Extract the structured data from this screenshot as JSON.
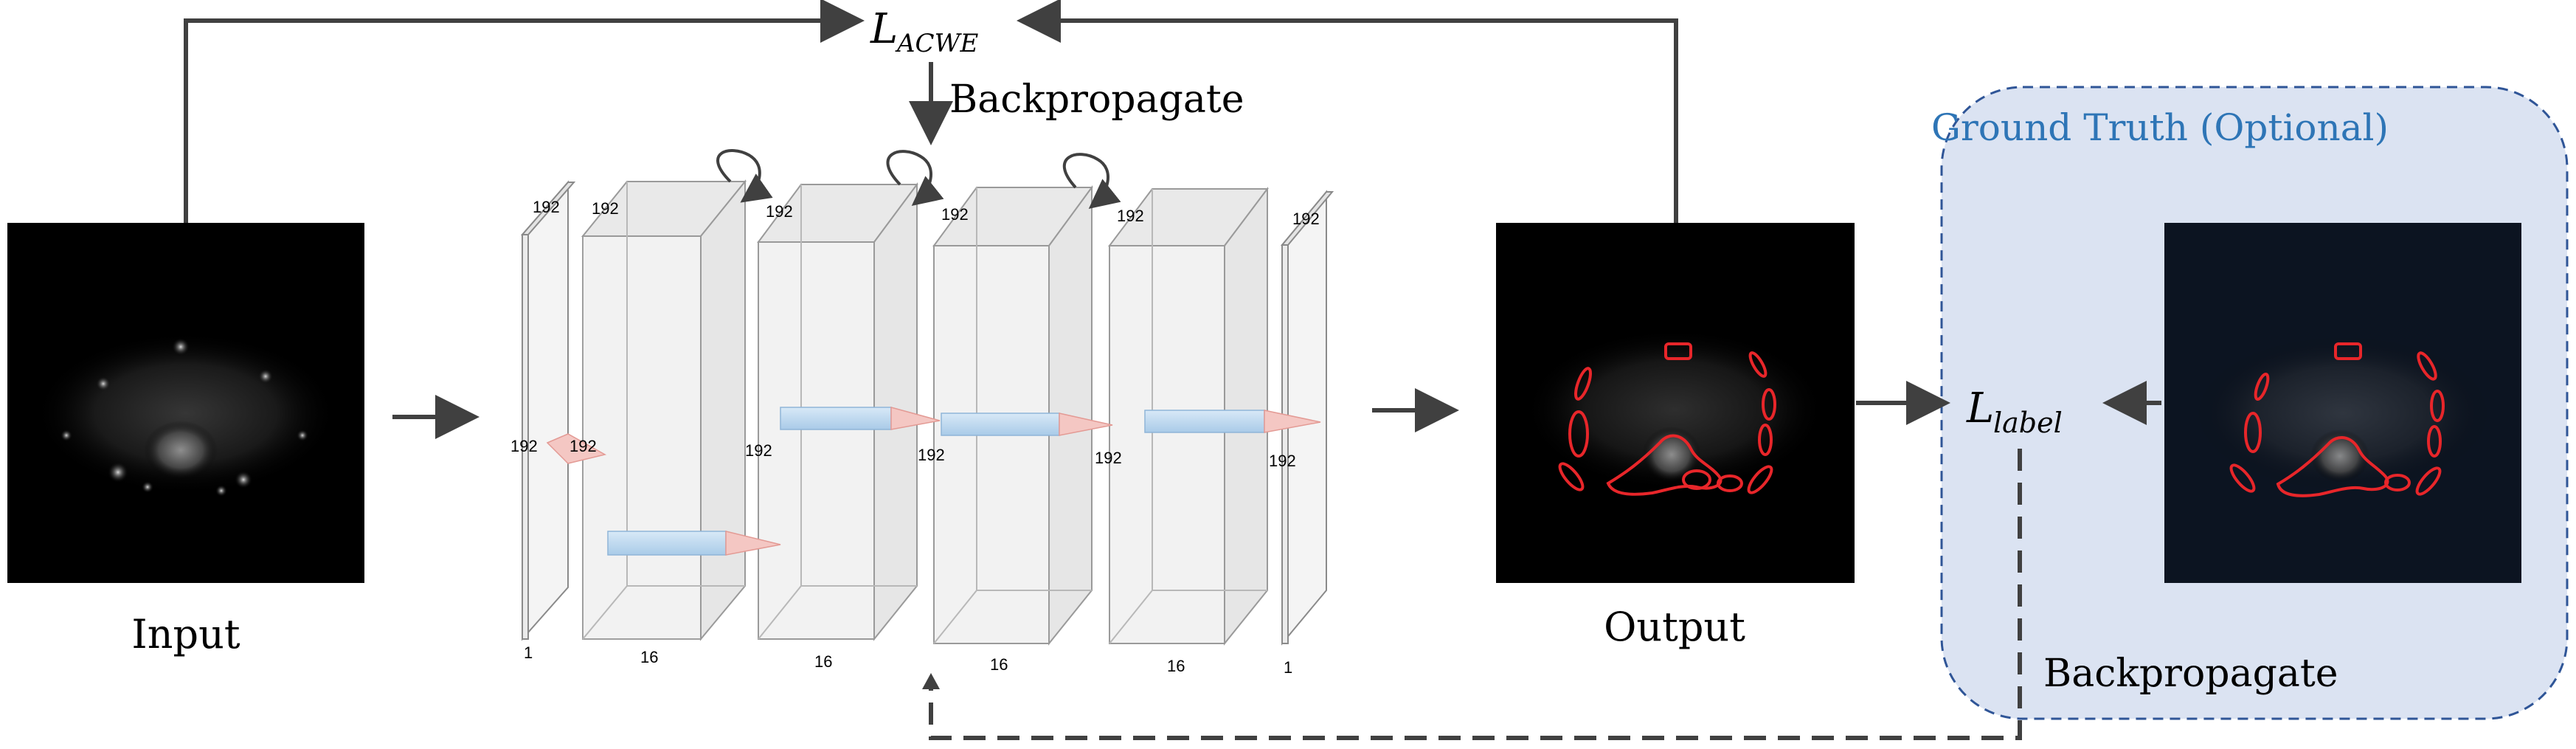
{
  "loss_acwe": {
    "base": "L",
    "sub": "ACWE"
  },
  "loss_label": {
    "base": "L",
    "sub": "label"
  },
  "labels": {
    "backprop_top": "Backpropagate",
    "backprop_bottom": "Backpropagate",
    "input": "Input",
    "output": "Output",
    "ground_truth": "Ground Truth (Optional)"
  },
  "dims": {
    "layer1_top": "192",
    "layer1_side": "192",
    "layer1_bottom": "1",
    "layer1_inner": "192",
    "block2_top": "192",
    "block2_side": "192",
    "block2_bottom": "16",
    "block3_top": "192",
    "block3_side": "192",
    "block3_bottom": "16",
    "block4_top": "192",
    "block4_side": "192",
    "block4_bottom": "16",
    "block5_top": "192",
    "block5_bottom": "16",
    "layer6_top": "192",
    "layer6_side": "192",
    "layer6_bottom": "1"
  },
  "colors": {
    "arrow": "#404040",
    "gt_fill": "#dbe3f2",
    "gt_border": "#2f5597",
    "gt_title": "#2e75b6",
    "contour": "#e8262a",
    "block_fill": "#f2f2f2",
    "block_edge": "#9a9a9a",
    "conv_fill": "#bcd7ee",
    "cone_fill": "#f4c7c3"
  }
}
